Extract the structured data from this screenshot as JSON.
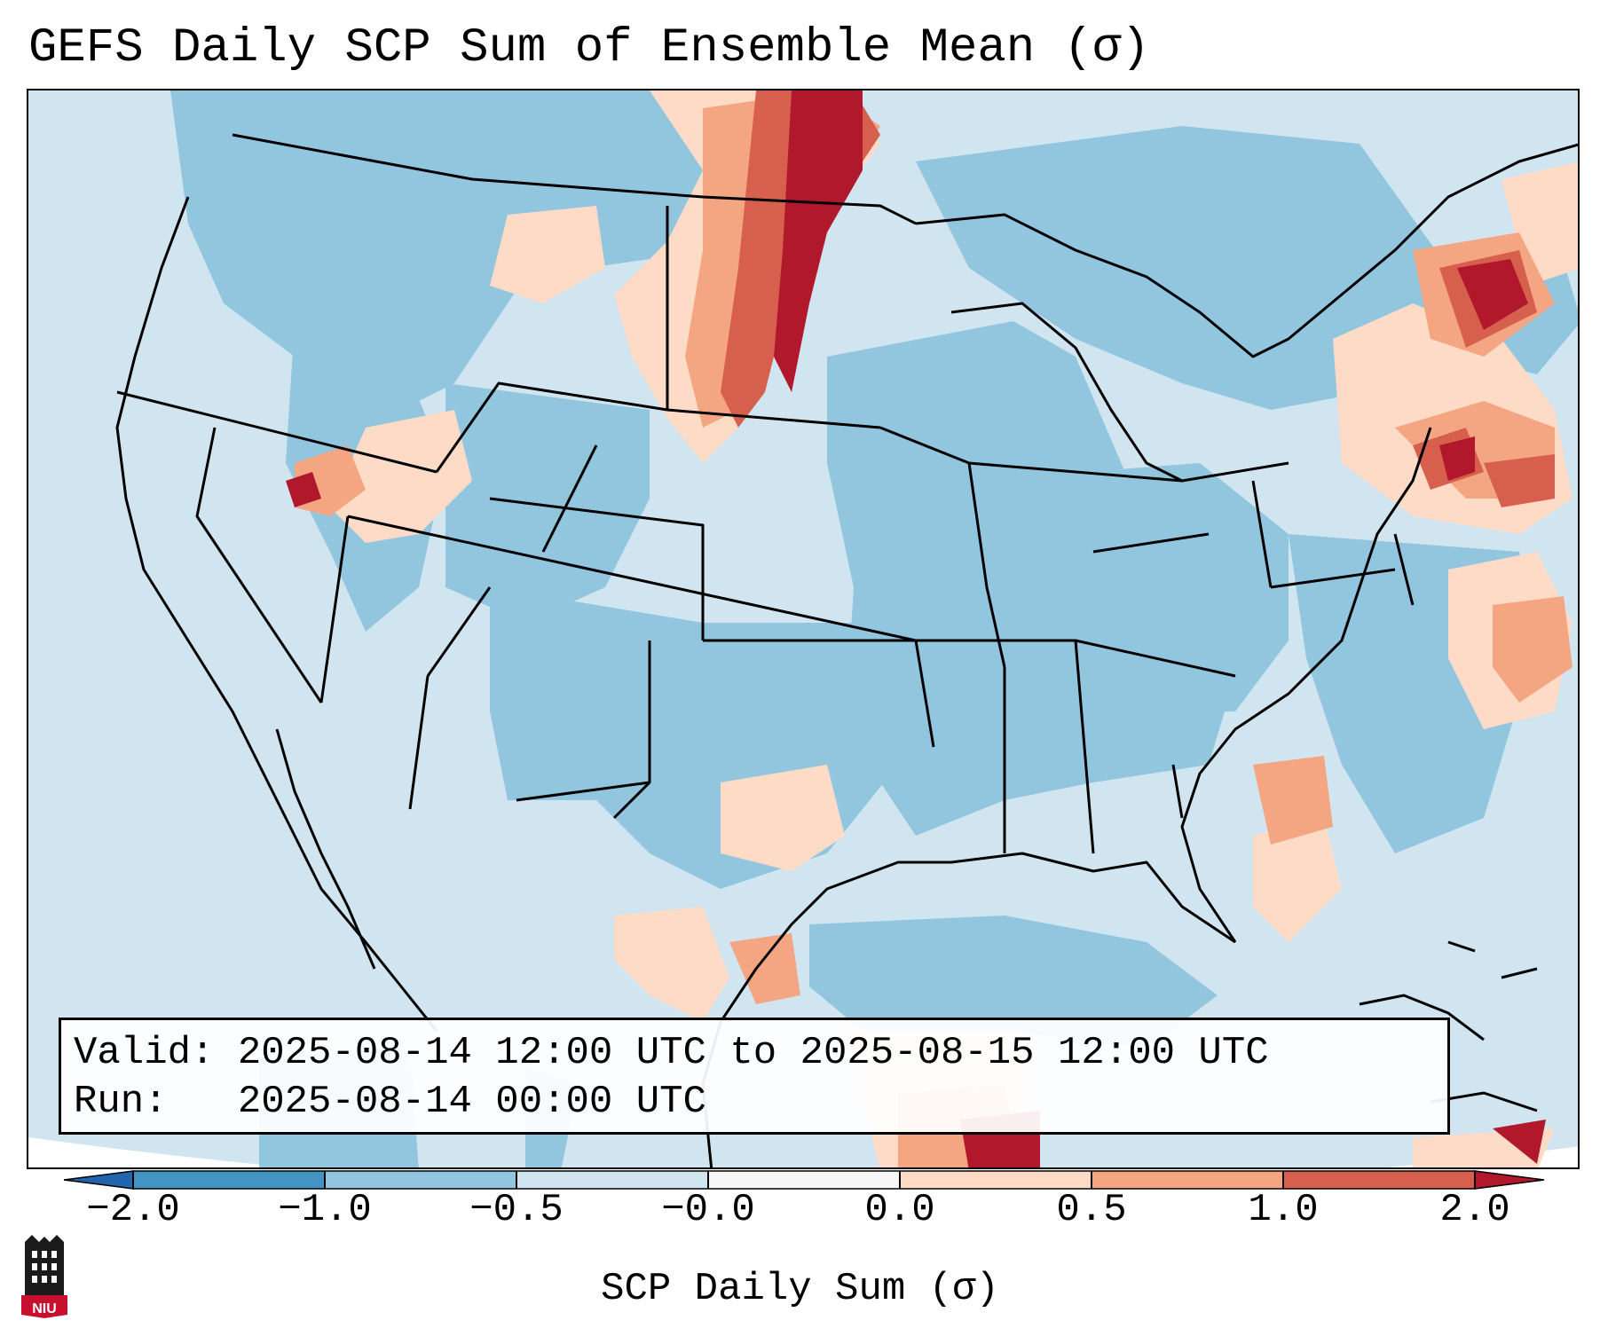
{
  "title": "GEFS Daily SCP Sum of Ensemble Mean (σ)",
  "map": {
    "projection": "Lambert Conformal - CONUS",
    "ocean_color": "#d1e5f0"
  },
  "info_box": {
    "valid_label": "Valid:",
    "valid_value": "2025-08-14 12:00 UTC to 2025-08-15 12:00 UTC",
    "run_label": "Run:",
    "run_value": "2025-08-14 00:00 UTC"
  },
  "colorbar": {
    "label": "SCP Daily Sum (σ)",
    "ticks": [
      "−2.0",
      "−1.0",
      "−0.5",
      "−0.0",
      "0.0",
      "0.5",
      "1.0",
      "2.0"
    ],
    "colors": [
      "#4393c3",
      "#92c5de",
      "#d1e5f0",
      "#f7f7f7",
      "#fddbc7",
      "#f4a582",
      "#d6604d"
    ],
    "under_color": "#2166ac",
    "over_color": "#b2182b"
  },
  "logo": {
    "text": "NIU"
  }
}
